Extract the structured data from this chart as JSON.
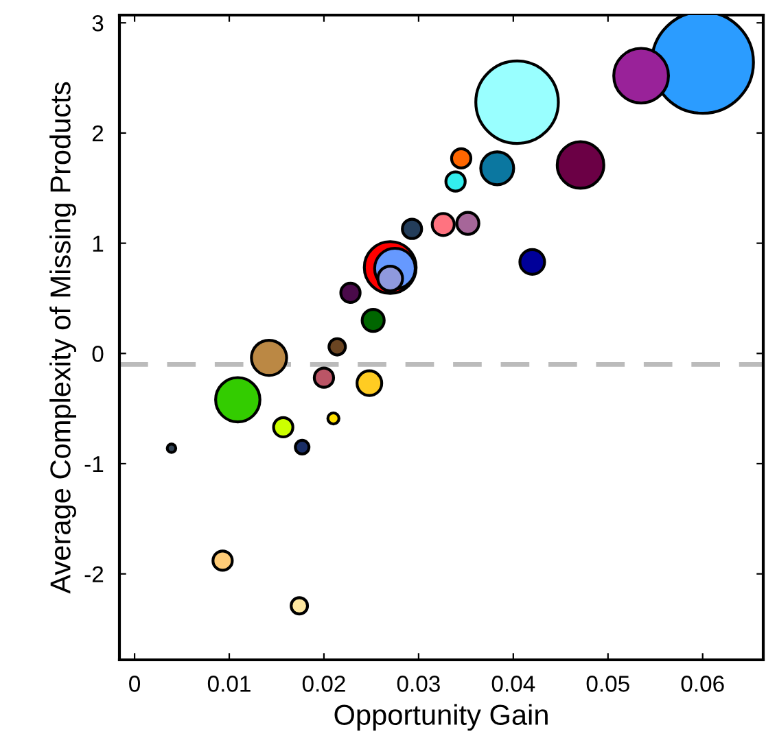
{
  "chart_data": {
    "type": "bubble",
    "xlabel": "Opportunity Gain",
    "ylabel": "Average Complexity of Missing Products",
    "x": [
      0.06,
      0.0404,
      0.0535,
      0.027,
      0.0471,
      0.0109,
      0.0275,
      0.0142,
      0.0383,
      0.042,
      0.0248,
      0.027,
      0.0326,
      0.0352,
      0.0252,
      0.0345,
      0.0339,
      0.0293,
      0.0228,
      0.02,
      0.0157,
      0.0093,
      0.0214,
      0.0174,
      0.0177,
      0.021,
      0.0039
    ],
    "values": [
      2.64,
      2.28,
      2.52,
      0.78,
      1.71,
      -0.42,
      0.77,
      -0.04,
      1.68,
      0.83,
      -0.27,
      0.68,
      1.17,
      1.18,
      0.3,
      1.77,
      1.56,
      1.13,
      0.55,
      -0.22,
      -0.67,
      -1.88,
      0.06,
      -2.29,
      -0.85,
      -0.59,
      -0.86
    ],
    "sizes": [
      1,
      0.66,
      0.29,
      0.26,
      0.21,
      0.19,
      0.16,
      0.12,
      0.105,
      0.059,
      0.059,
      0.059,
      0.047,
      0.047,
      0.047,
      0.036,
      0.036,
      0.036,
      0.036,
      0.036,
      0.036,
      0.036,
      0.026,
      0.026,
      0.018,
      0.012,
      0.007
    ],
    "colors": [
      "#2b9cff",
      "#99ffff",
      "#992299",
      "#ff0000",
      "#6b0045",
      "#33cc00",
      "#6699ff",
      "#bb8844",
      "#0b77a0",
      "#000099",
      "#ffcc22",
      "#8f99dd",
      "#ff7380",
      "#a66699",
      "#006600",
      "#ff6600",
      "#33eeee",
      "#233d5a",
      "#4a0a4a",
      "#bb5566",
      "#ccff00",
      "#ffcc77",
      "#6b4522",
      "#ffe8a0",
      "#1a2e66",
      "#ffe000",
      "#334455"
    ],
    "xlim": [
      -0.0016,
      0.0664
    ],
    "ylim": [
      -2.78,
      3.07
    ],
    "xticks": [
      0,
      0.01,
      0.02,
      0.03,
      0.04,
      0.05,
      0.06
    ],
    "yticks": [
      -2,
      -1,
      0,
      1,
      2,
      3
    ],
    "ref_lines": [
      {
        "axis": "y",
        "value": -0.1,
        "color": "#bbbbbb",
        "line_style": "dashed"
      }
    ],
    "grid": false,
    "legend": false
  }
}
